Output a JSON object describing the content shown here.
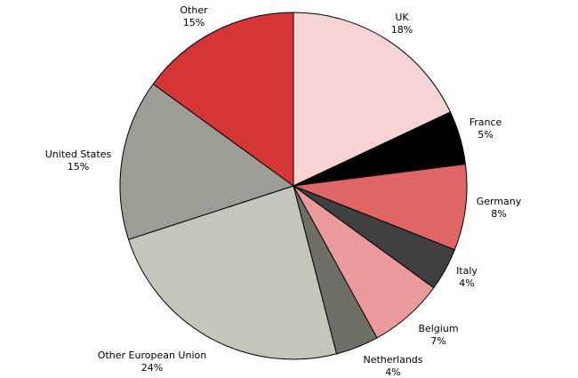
{
  "chart_data": {
    "type": "pie",
    "slices": [
      {
        "label": "UK",
        "value": 18,
        "value_label": "18%",
        "color": "#f7d4d4"
      },
      {
        "label": "France",
        "value": 5,
        "value_label": "5%",
        "color": "#000000"
      },
      {
        "label": "Germany",
        "value": 8,
        "value_label": "8%",
        "color": "#e06666"
      },
      {
        "label": "Italy",
        "value": 4,
        "value_label": "4%",
        "color": "#404040"
      },
      {
        "label": "Belgium",
        "value": 7,
        "value_label": "7%",
        "color": "#ea9a9a"
      },
      {
        "label": "Netherlands",
        "value": 4,
        "value_label": "4%",
        "color": "#6f6f68"
      },
      {
        "label": "Other European Union",
        "value": 24,
        "value_label": "24%",
        "color": "#c5c5bb"
      },
      {
        "label": "United States",
        "value": 15,
        "value_label": "15%",
        "color": "#9d9d96"
      },
      {
        "label": "Other",
        "value": 15,
        "value_label": "15%",
        "color": "#d63535"
      }
    ],
    "start_angle": "12 o'clock",
    "direction": "clockwise",
    "legend": "none"
  }
}
